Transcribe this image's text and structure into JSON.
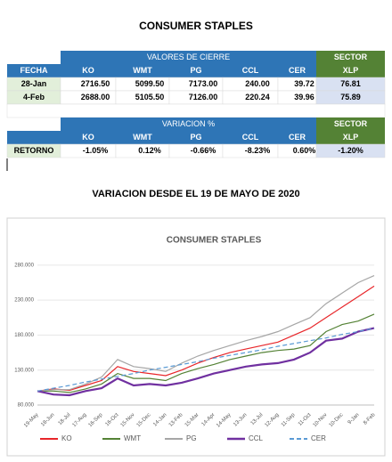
{
  "title": "CONSUMER STAPLES",
  "table1": {
    "group_header": "VALORES DE CIERRE",
    "sector_header": "SECTOR",
    "columns": [
      "FECHA",
      "KO",
      "WMT",
      "PG",
      "CCL",
      "CER",
      "XLP"
    ],
    "rows": [
      [
        "28-Jan",
        "2716.50",
        "5099.50",
        "7173.00",
        "240.00",
        "39.72",
        "76.81"
      ],
      [
        "4-Feb",
        "2688.00",
        "5105.50",
        "7126.00",
        "220.24",
        "39.96",
        "75.89"
      ]
    ]
  },
  "table2": {
    "group_header": "VARIACION %",
    "sector_header": "SECTOR",
    "columns": [
      "KO",
      "WMT",
      "PG",
      "CCL",
      "CER",
      "XLP"
    ],
    "rows": [
      [
        "RETORNO",
        "-1.05%",
        "0.12%",
        "-0.66%",
        "-8.23%",
        "0.60%",
        "-1.20%"
      ]
    ]
  },
  "subtitle": "VARIACION DESDE EL 19 DE MAYO DE 2020",
  "chart_data": {
    "type": "line",
    "title": "CONSUMER STAPLES",
    "categories": [
      "19-May",
      "18-Jun",
      "18-Jul",
      "17-Aug",
      "16-Sep",
      "16-Oct",
      "15-Nov",
      "15-Dec",
      "14-Jan",
      "13-Feb",
      "15-Mar",
      "14-Apr",
      "14-May",
      "13-Jun",
      "13-Jul",
      "12-Aug",
      "11-Sep",
      "11-Oct",
      "10-Nov",
      "10-Dec",
      "9-Jan",
      "8-Feb"
    ],
    "series": [
      {
        "name": "KO",
        "color": "#e8262a",
        "values": [
          100,
          103,
          101,
          108,
          115,
          135,
          128,
          125,
          122,
          130,
          140,
          148,
          155,
          160,
          165,
          170,
          180,
          190,
          205,
          220,
          235,
          250
        ]
      },
      {
        "name": "WMT",
        "color": "#548235",
        "values": [
          100,
          100,
          98,
          103,
          110,
          125,
          118,
          118,
          115,
          125,
          132,
          138,
          145,
          150,
          155,
          158,
          160,
          165,
          185,
          195,
          200,
          210
        ]
      },
      {
        "name": "PG",
        "color": "#a6a6a6",
        "values": [
          100,
          102,
          102,
          110,
          120,
          145,
          135,
          132,
          128,
          140,
          150,
          158,
          165,
          172,
          178,
          185,
          195,
          205,
          225,
          240,
          255,
          265
        ]
      },
      {
        "name": "CCL",
        "color": "#7030a0",
        "values": [
          100,
          95,
          94,
          100,
          104,
          118,
          108,
          110,
          108,
          112,
          118,
          125,
          130,
          135,
          138,
          140,
          145,
          155,
          172,
          175,
          185,
          190
        ]
      },
      {
        "name": "CER",
        "color": "#5b9bd5",
        "dashed": true,
        "values": [
          100,
          104,
          108,
          113,
          117,
          121,
          125,
          130,
          134,
          138,
          142,
          147,
          151,
          155,
          159,
          164,
          168,
          172,
          176,
          181,
          185,
          190
        ]
      }
    ],
    "ylim": [
      80,
      290
    ],
    "yticks": [
      {
        "value": 80,
        "label": "80.000"
      },
      {
        "value": 130,
        "label": "130.000"
      },
      {
        "value": 180,
        "label": "180.000"
      },
      {
        "value": 230,
        "label": "230.000"
      },
      {
        "value": 280,
        "label": "280.000"
      }
    ],
    "legend": "bottom"
  }
}
